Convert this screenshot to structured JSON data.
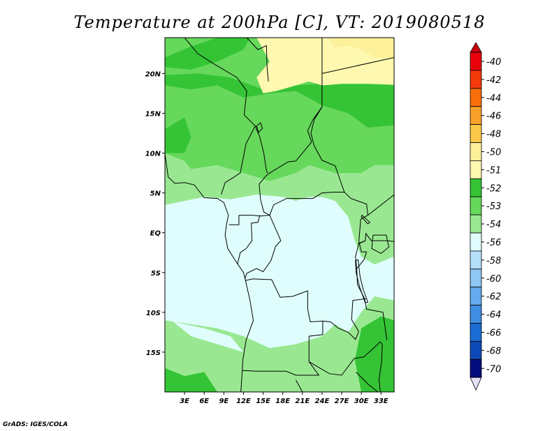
{
  "title": "Temperature at 200hPa [C], VT: 2019080518",
  "credit": "GrADS: IGES/COLA",
  "chart_data": {
    "type": "heatmap",
    "title": "Temperature at 200hPa [C], VT: 2019080518",
    "variable": "Temperature",
    "units": "C",
    "level": "200hPa",
    "valid_time": "2019080518",
    "xlabel": "",
    "ylabel": "",
    "xlim": [
      0,
      35
    ],
    "ylim": [
      -20,
      24.5
    ],
    "x_ticks": [
      3,
      6,
      9,
      12,
      15,
      18,
      21,
      24,
      27,
      30,
      33
    ],
    "x_tick_labels": [
      "3E",
      "6E",
      "9E",
      "12E",
      "15E",
      "18E",
      "21E",
      "24E",
      "27E",
      "30E",
      "33E"
    ],
    "y_ticks": [
      20,
      15,
      10,
      5,
      0,
      -5,
      -10,
      -15
    ],
    "y_tick_labels": [
      "20N",
      "15N",
      "10N",
      "5N",
      "EQ",
      "5S",
      "10S",
      "15S"
    ],
    "colorbar": {
      "labels": [
        "-40",
        "-42",
        "-44",
        "-46",
        "-48",
        "-50",
        "-51",
        "-52",
        "-53",
        "-54",
        "-56",
        "-58",
        "-60",
        "-62",
        "-64",
        "-66",
        "-68",
        "-70"
      ],
      "colors": [
        "#e8000b",
        "#f23a0a",
        "#f76e0b",
        "#f8a12a",
        "#fbc84a",
        "#fdf09a",
        "#fef8b0",
        "#35c435",
        "#66d85b",
        "#99e891",
        "#e0fdfe",
        "#b6dffa",
        "#8ec7f4",
        "#66abee",
        "#3f8ee3",
        "#1b6dd4",
        "#0d49b6",
        "#040c7c"
      ],
      "top_color": "#c90010",
      "bottom_color": "#e6e0f8"
    },
    "regions": [
      {
        "label": "-53",
        "color": "#66d85b",
        "polygon": [
          [
            0,
            24.5
          ],
          [
            35,
            24.5
          ],
          [
            35,
            -20
          ],
          [
            0,
            -20
          ]
        ]
      },
      {
        "label": "-52",
        "color": "#35c435",
        "polygon": [
          [
            0,
            18.5
          ],
          [
            4,
            18
          ],
          [
            8,
            18.5
          ],
          [
            12,
            17
          ],
          [
            16,
            17.5
          ],
          [
            20,
            17.8
          ],
          [
            24,
            16
          ],
          [
            28,
            15
          ],
          [
            31,
            13.2
          ],
          [
            35,
            13.5
          ],
          [
            35,
            18.5
          ],
          [
            30,
            18.8
          ],
          [
            25,
            18.8
          ],
          [
            20,
            18.5
          ],
          [
            15,
            18
          ],
          [
            10,
            19.5
          ],
          [
            5,
            20
          ],
          [
            0,
            19.8
          ]
        ]
      },
      {
        "label": "-52",
        "color": "#35c435",
        "polygon": [
          [
            0,
            22
          ],
          [
            4,
            23.4
          ],
          [
            8,
            24.5
          ],
          [
            13,
            24.5
          ],
          [
            12,
            23
          ],
          [
            8,
            21.5
          ],
          [
            4,
            20.5
          ],
          [
            0,
            20.8
          ]
        ]
      },
      {
        "label": "-51",
        "color": "#fef8b0",
        "polygon": [
          [
            14,
            24.5
          ],
          [
            35,
            24.5
          ],
          [
            35,
            18.6
          ],
          [
            31,
            18.7
          ],
          [
            27,
            18.7
          ],
          [
            24,
            18.5
          ],
          [
            22,
            19
          ],
          [
            20,
            18.5
          ],
          [
            17,
            17.8
          ],
          [
            15,
            17.5
          ],
          [
            14,
            19.5
          ],
          [
            16,
            21.5
          ],
          [
            15,
            23
          ]
        ]
      },
      {
        "label": "-50",
        "color": "#fdf09a",
        "polygon": [
          [
            25,
            24.5
          ],
          [
            35,
            24.5
          ],
          [
            35,
            22
          ],
          [
            32,
            22
          ],
          [
            30,
            23
          ],
          [
            28,
            23.5
          ],
          [
            26,
            23.2
          ]
        ]
      },
      {
        "label": "-52",
        "color": "#35c435",
        "polygon": [
          [
            0,
            13
          ],
          [
            3,
            14.5
          ],
          [
            4,
            12
          ],
          [
            3,
            10
          ],
          [
            0,
            10
          ]
        ]
      },
      {
        "label": "-54",
        "color": "#99e891",
        "polygon": [
          [
            0,
            10
          ],
          [
            3,
            9
          ],
          [
            4,
            8
          ],
          [
            8,
            8.5
          ],
          [
            12,
            7.5
          ],
          [
            16,
            6.5
          ],
          [
            20,
            7.5
          ],
          [
            22,
            8.5
          ],
          [
            26,
            7.5
          ],
          [
            30,
            7.5
          ],
          [
            32,
            8.5
          ],
          [
            35,
            8.5
          ],
          [
            35,
            -3
          ],
          [
            32,
            -4
          ],
          [
            30,
            -3
          ],
          [
            29,
            -1
          ],
          [
            28,
            2
          ],
          [
            26,
            4
          ],
          [
            24,
            4.5
          ],
          [
            22,
            4.5
          ],
          [
            20,
            4
          ],
          [
            18,
            4.5
          ],
          [
            14,
            4.8
          ],
          [
            10,
            4.2
          ],
          [
            6,
            4.5
          ],
          [
            3,
            4
          ],
          [
            0,
            3.5
          ]
        ]
      },
      {
        "label": "-54",
        "color": "#99e891",
        "polygon": [
          [
            0,
            -11
          ],
          [
            4,
            -11.5
          ],
          [
            8,
            -12
          ],
          [
            12,
            -13
          ],
          [
            16,
            -14.5
          ],
          [
            20,
            -14
          ],
          [
            24,
            -13
          ],
          [
            26,
            -11.5
          ],
          [
            28,
            -12.5
          ],
          [
            30,
            -10
          ],
          [
            32,
            -8
          ],
          [
            35,
            -8.5
          ],
          [
            35,
            -20
          ],
          [
            0,
            -20
          ]
        ]
      },
      {
        "label": "-56",
        "color": "#e0fdfe",
        "polygon": [
          [
            0,
            3.5
          ],
          [
            3,
            4
          ],
          [
            6,
            4.5
          ],
          [
            10,
            4.2
          ],
          [
            14,
            4.8
          ],
          [
            18,
            4.5
          ],
          [
            20,
            4
          ],
          [
            22,
            4.5
          ],
          [
            24,
            4.5
          ],
          [
            26,
            4
          ],
          [
            28,
            2
          ],
          [
            29,
            -1
          ],
          [
            30,
            -3
          ],
          [
            32,
            -4
          ],
          [
            35,
            -3
          ],
          [
            35,
            -8.5
          ],
          [
            32,
            -8
          ],
          [
            30,
            -10
          ],
          [
            28,
            -12.5
          ],
          [
            26,
            -11.5
          ],
          [
            24,
            -13
          ],
          [
            20,
            -14
          ],
          [
            16,
            -14.5
          ],
          [
            12,
            -13
          ],
          [
            8,
            -12
          ],
          [
            4,
            -11.5
          ],
          [
            0,
            -11
          ]
        ]
      },
      {
        "label": "-54",
        "color": "#99e891",
        "polygon": [
          [
            2,
            -15.5
          ],
          [
            6,
            -16
          ],
          [
            8,
            -18.5
          ],
          [
            5,
            -19
          ],
          [
            2,
            -17.5
          ]
        ]
      },
      {
        "label": "-52",
        "color": "#35c435",
        "polygon": [
          [
            0,
            -17
          ],
          [
            3,
            -18
          ],
          [
            6,
            -17.5
          ],
          [
            8,
            -20
          ],
          [
            0,
            -20
          ]
        ]
      },
      {
        "label": "-52",
        "color": "#35c435",
        "polygon": [
          [
            30,
            -12
          ],
          [
            33,
            -10.5
          ],
          [
            35,
            -11
          ],
          [
            35,
            -20
          ],
          [
            30,
            -20
          ],
          [
            29,
            -16
          ]
        ]
      },
      {
        "label": "-56",
        "color": "#e0fdfe",
        "polygon": [
          [
            1,
            -11
          ],
          [
            4,
            -13
          ],
          [
            8,
            -14
          ],
          [
            12,
            -15
          ],
          [
            10,
            -13
          ],
          [
            6,
            -12
          ],
          [
            2,
            -11.3
          ]
        ]
      }
    ]
  }
}
